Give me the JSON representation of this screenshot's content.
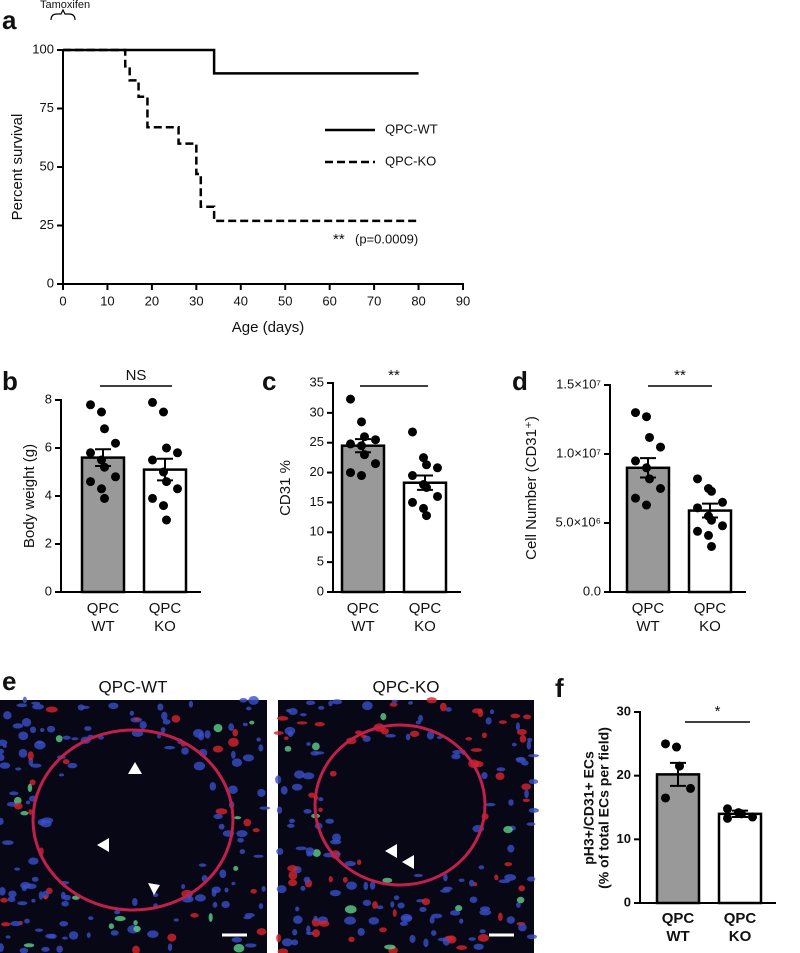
{
  "chart_data": [
    {
      "type": "line",
      "label": "a",
      "ylabel": "Percent survival",
      "xlabel": "Age (days)",
      "xlim": [
        0,
        90
      ],
      "xticks": [
        0,
        10,
        20,
        30,
        40,
        50,
        60,
        70,
        80,
        90
      ],
      "ylim": [
        0,
        100
      ],
      "yticks": [
        0,
        25,
        50,
        75,
        100
      ],
      "annotations": [
        "Tamoxifen",
        "**",
        "(p=0.0009)"
      ],
      "series": [
        {
          "name": "QPC-WT",
          "color": "#000000",
          "line_style": "solid",
          "x": [
            0,
            34,
            34,
            80
          ],
          "values": [
            100,
            100,
            90,
            90
          ]
        },
        {
          "name": "QPC-KO",
          "color": "#000000",
          "line_style": "dashed",
          "x": [
            0,
            14,
            14,
            15,
            15,
            17,
            17,
            19,
            19,
            26,
            26,
            30,
            30,
            31,
            31,
            34,
            34,
            80
          ],
          "values": [
            100,
            100,
            93,
            93,
            87,
            87,
            80,
            80,
            67,
            67,
            60,
            60,
            47,
            47,
            33,
            33,
            27,
            27
          ]
        }
      ]
    },
    {
      "type": "bar",
      "label": "b",
      "ylabel": "Body weight (g)",
      "significance": "NS",
      "categories": [
        [
          "QPC",
          "WT"
        ],
        [
          "QPC",
          "KO"
        ]
      ],
      "colors": [
        "#999999",
        "#ffffff"
      ],
      "ylim": [
        0,
        8
      ],
      "yticks": [
        0,
        2,
        4,
        6,
        8
      ],
      "values": [
        5.6,
        5.1
      ],
      "errors": [
        0.35,
        0.45
      ],
      "points": [
        [
          7.8,
          7.5,
          6.8,
          6.2,
          5.8,
          5.5,
          5.2,
          4.8,
          4.6,
          4.3,
          3.9
        ],
        [
          7.9,
          7.5,
          6.0,
          5.8,
          5.5,
          5.0,
          4.6,
          4.3,
          3.9,
          3.6,
          3.0
        ]
      ]
    },
    {
      "type": "bar",
      "label": "c",
      "ylabel": "CD31 %",
      "significance": "**",
      "categories": [
        [
          "QPC",
          "WT"
        ],
        [
          "QPC",
          "KO"
        ]
      ],
      "colors": [
        "#999999",
        "#ffffff"
      ],
      "ylim": [
        0,
        35
      ],
      "yticks": [
        0,
        5,
        10,
        15,
        20,
        25,
        30,
        35
      ],
      "values": [
        24.5,
        18.3
      ],
      "errors": [
        1.1,
        1.2
      ],
      "points": [
        [
          32.3,
          28.5,
          26,
          25.5,
          24.8,
          24.5,
          23,
          21.5,
          20,
          19.5
        ],
        [
          26.8,
          22.5,
          21.3,
          20.8,
          19.5,
          18,
          17.5,
          16,
          15,
          14,
          12.8
        ]
      ]
    },
    {
      "type": "bar",
      "label": "d",
      "ylabel": "Cell Number (CD31⁺)",
      "significance": "**",
      "categories": [
        [
          "QPC",
          "WT"
        ],
        [
          "QPC",
          "KO"
        ]
      ],
      "colors": [
        "#999999",
        "#ffffff"
      ],
      "ylim": [
        0,
        15000000
      ],
      "yticks": [
        {
          "value": 0,
          "label": "0.0"
        },
        {
          "value": 5000000,
          "label": "5.0×10⁶"
        },
        {
          "value": 10000000,
          "label": "1.0×10⁷"
        },
        {
          "value": 15000000,
          "label": "1.5×10⁷"
        }
      ],
      "values": [
        9000000,
        5900000
      ],
      "errors": [
        700000,
        500000
      ],
      "points": [
        [
          13000000,
          12700000,
          11200000,
          10500000,
          9500000,
          9000000,
          8200000,
          7500000,
          6800000,
          6300000
        ],
        [
          8200000,
          7500000,
          7300000,
          6500000,
          6100000,
          5500000,
          5200000,
          4800000,
          4400000,
          4100000,
          3300000
        ]
      ]
    },
    {
      "type": "bar",
      "label": "f",
      "ylabel": [
        "pH3+/CD31+ ECs",
        "(% of total ECs per field)"
      ],
      "significance": "*",
      "categories": [
        [
          "QPC",
          "WT"
        ],
        [
          "QPC",
          "KO"
        ]
      ],
      "colors": [
        "#999999",
        "#ffffff"
      ],
      "ylim": [
        0,
        30
      ],
      "yticks": [
        0,
        10,
        20,
        30
      ],
      "values": [
        20.2,
        14
      ],
      "errors": [
        1.8,
        0.5
      ],
      "points": [
        [
          25,
          24.5,
          21.5,
          18,
          16.5
        ],
        [
          14.8,
          14.2,
          14,
          13.5,
          13.3
        ]
      ]
    }
  ],
  "panel_e": {
    "label": "e",
    "titles": [
      "QPC-WT",
      "QPC-KO"
    ]
  }
}
